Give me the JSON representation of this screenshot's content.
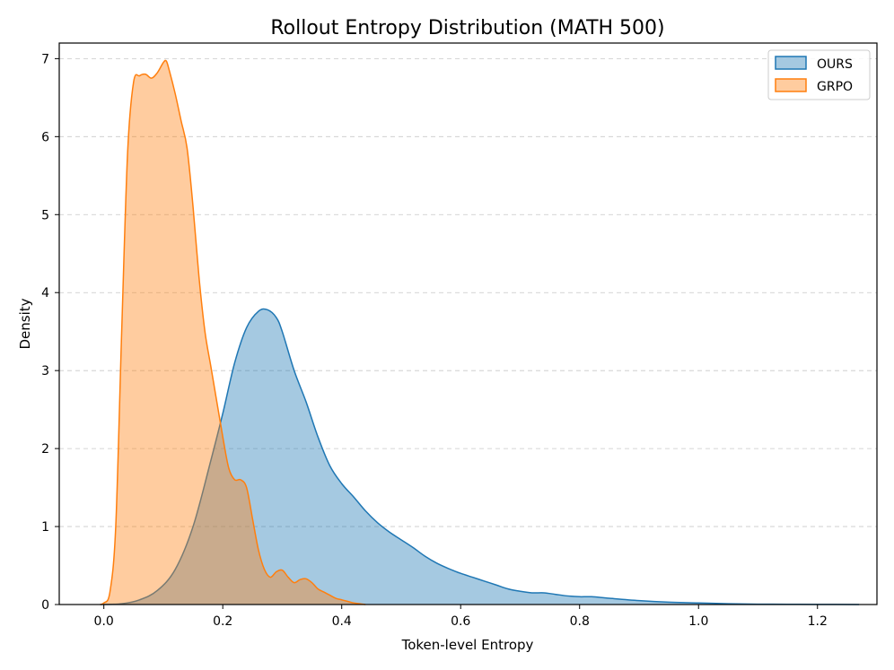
{
  "chart_data": {
    "type": "area",
    "title": "Rollout Entropy Distribution (MATH 500)",
    "xlabel": "Token-level Entropy",
    "ylabel": "Density",
    "xlim": [
      -0.075,
      1.3
    ],
    "ylim": [
      0,
      7.2
    ],
    "xticks": [
      "0.0",
      "0.2",
      "0.4",
      "0.6",
      "0.8",
      "1.0",
      "1.2"
    ],
    "xtick_values": [
      0.0,
      0.2,
      0.4,
      0.6,
      0.8,
      1.0,
      1.2
    ],
    "yticks": [
      "0",
      "1",
      "2",
      "3",
      "4",
      "5",
      "6",
      "7"
    ],
    "ytick_values": [
      0,
      1,
      2,
      3,
      4,
      5,
      6,
      7
    ],
    "grid": "y-dashed",
    "legend_position": "top-right",
    "series": [
      {
        "name": "OURS",
        "color": "#1f77b4",
        "fill_opacity": 0.4,
        "points": [
          [
            -0.006,
            0.0
          ],
          [
            0.03,
            0.01
          ],
          [
            0.06,
            0.06
          ],
          [
            0.09,
            0.18
          ],
          [
            0.12,
            0.45
          ],
          [
            0.15,
            1.0
          ],
          [
            0.18,
            1.85
          ],
          [
            0.2,
            2.45
          ],
          [
            0.22,
            3.1
          ],
          [
            0.24,
            3.55
          ],
          [
            0.26,
            3.76
          ],
          [
            0.275,
            3.78
          ],
          [
            0.29,
            3.68
          ],
          [
            0.3,
            3.5
          ],
          [
            0.32,
            3.0
          ],
          [
            0.34,
            2.6
          ],
          [
            0.36,
            2.15
          ],
          [
            0.38,
            1.78
          ],
          [
            0.4,
            1.55
          ],
          [
            0.42,
            1.38
          ],
          [
            0.44,
            1.2
          ],
          [
            0.46,
            1.05
          ],
          [
            0.48,
            0.93
          ],
          [
            0.5,
            0.83
          ],
          [
            0.52,
            0.73
          ],
          [
            0.54,
            0.62
          ],
          [
            0.56,
            0.53
          ],
          [
            0.58,
            0.46
          ],
          [
            0.6,
            0.4
          ],
          [
            0.62,
            0.35
          ],
          [
            0.64,
            0.3
          ],
          [
            0.66,
            0.25
          ],
          [
            0.68,
            0.2
          ],
          [
            0.7,
            0.17
          ],
          [
            0.72,
            0.15
          ],
          [
            0.74,
            0.15
          ],
          [
            0.76,
            0.13
          ],
          [
            0.78,
            0.11
          ],
          [
            0.8,
            0.1
          ],
          [
            0.82,
            0.1
          ],
          [
            0.85,
            0.08
          ],
          [
            0.9,
            0.05
          ],
          [
            0.95,
            0.03
          ],
          [
            1.0,
            0.02
          ],
          [
            1.05,
            0.01
          ],
          [
            1.1,
            0.005
          ],
          [
            1.15,
            0.003
          ],
          [
            1.2,
            0.002
          ],
          [
            1.27,
            0.0
          ]
        ]
      },
      {
        "name": "GRPO",
        "color": "#ff7f0e",
        "fill_opacity": 0.4,
        "points": [
          [
            -0.006,
            0.0
          ],
          [
            0.0,
            0.02
          ],
          [
            0.01,
            0.15
          ],
          [
            0.02,
            1.0
          ],
          [
            0.03,
            3.5
          ],
          [
            0.04,
            5.8
          ],
          [
            0.05,
            6.7
          ],
          [
            0.06,
            6.78
          ],
          [
            0.07,
            6.8
          ],
          [
            0.08,
            6.75
          ],
          [
            0.09,
            6.82
          ],
          [
            0.1,
            6.95
          ],
          [
            0.105,
            6.97
          ],
          [
            0.11,
            6.85
          ],
          [
            0.12,
            6.55
          ],
          [
            0.13,
            6.2
          ],
          [
            0.14,
            5.85
          ],
          [
            0.15,
            5.1
          ],
          [
            0.16,
            4.2
          ],
          [
            0.17,
            3.5
          ],
          [
            0.18,
            3.05
          ],
          [
            0.19,
            2.6
          ],
          [
            0.2,
            2.15
          ],
          [
            0.21,
            1.75
          ],
          [
            0.22,
            1.6
          ],
          [
            0.23,
            1.6
          ],
          [
            0.24,
            1.5
          ],
          [
            0.25,
            1.1
          ],
          [
            0.26,
            0.7
          ],
          [
            0.27,
            0.45
          ],
          [
            0.28,
            0.35
          ],
          [
            0.29,
            0.42
          ],
          [
            0.3,
            0.44
          ],
          [
            0.31,
            0.35
          ],
          [
            0.32,
            0.28
          ],
          [
            0.33,
            0.32
          ],
          [
            0.34,
            0.33
          ],
          [
            0.35,
            0.28
          ],
          [
            0.36,
            0.2
          ],
          [
            0.37,
            0.16
          ],
          [
            0.38,
            0.12
          ],
          [
            0.39,
            0.08
          ],
          [
            0.4,
            0.06
          ],
          [
            0.41,
            0.04
          ],
          [
            0.42,
            0.02
          ],
          [
            0.43,
            0.01
          ],
          [
            0.44,
            0.0
          ]
        ]
      }
    ]
  }
}
